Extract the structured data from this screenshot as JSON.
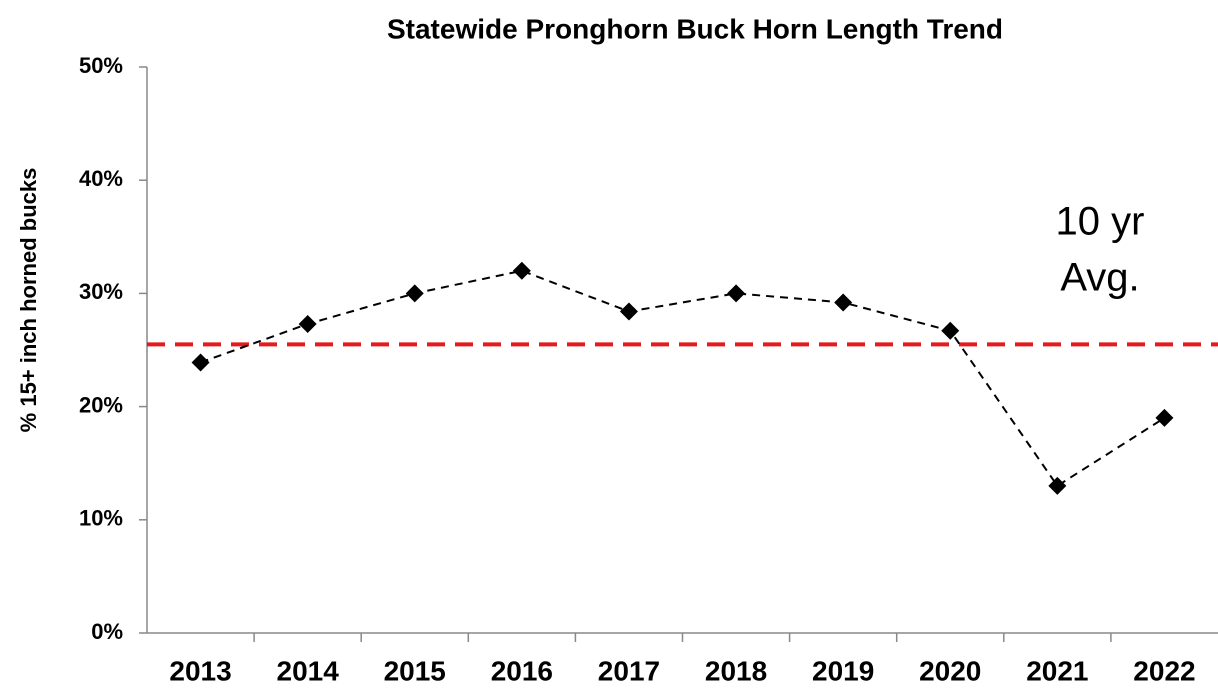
{
  "chart_data": {
    "type": "line",
    "title": "Statewide Pronghorn Buck Horn Length Trend",
    "y_label": "% 15+ inch horned bucks",
    "categories": [
      "2013",
      "2014",
      "2015",
      "2016",
      "2017",
      "2018",
      "2019",
      "2020",
      "2021",
      "2022"
    ],
    "values": [
      23.9,
      27.3,
      30,
      32,
      28.4,
      30,
      29.2,
      26.7,
      13,
      19
    ],
    "color": "#000000",
    "marker": "diamond",
    "line_style": "dashed",
    "reference_line": {
      "value": 25.5,
      "color": "#e41a1c"
    },
    "annotation_lines": [
      "10 yr",
      "Avg."
    ],
    "ylim": [
      0,
      50
    ],
    "yticks": [
      {
        "value": 0,
        "label": "0%"
      },
      {
        "value": 10,
        "label": "10%"
      },
      {
        "value": 20,
        "label": "20%"
      },
      {
        "value": 30,
        "label": "30%"
      },
      {
        "value": 40,
        "label": "40%"
      },
      {
        "value": 50,
        "label": "50%"
      }
    ],
    "grid": false
  }
}
